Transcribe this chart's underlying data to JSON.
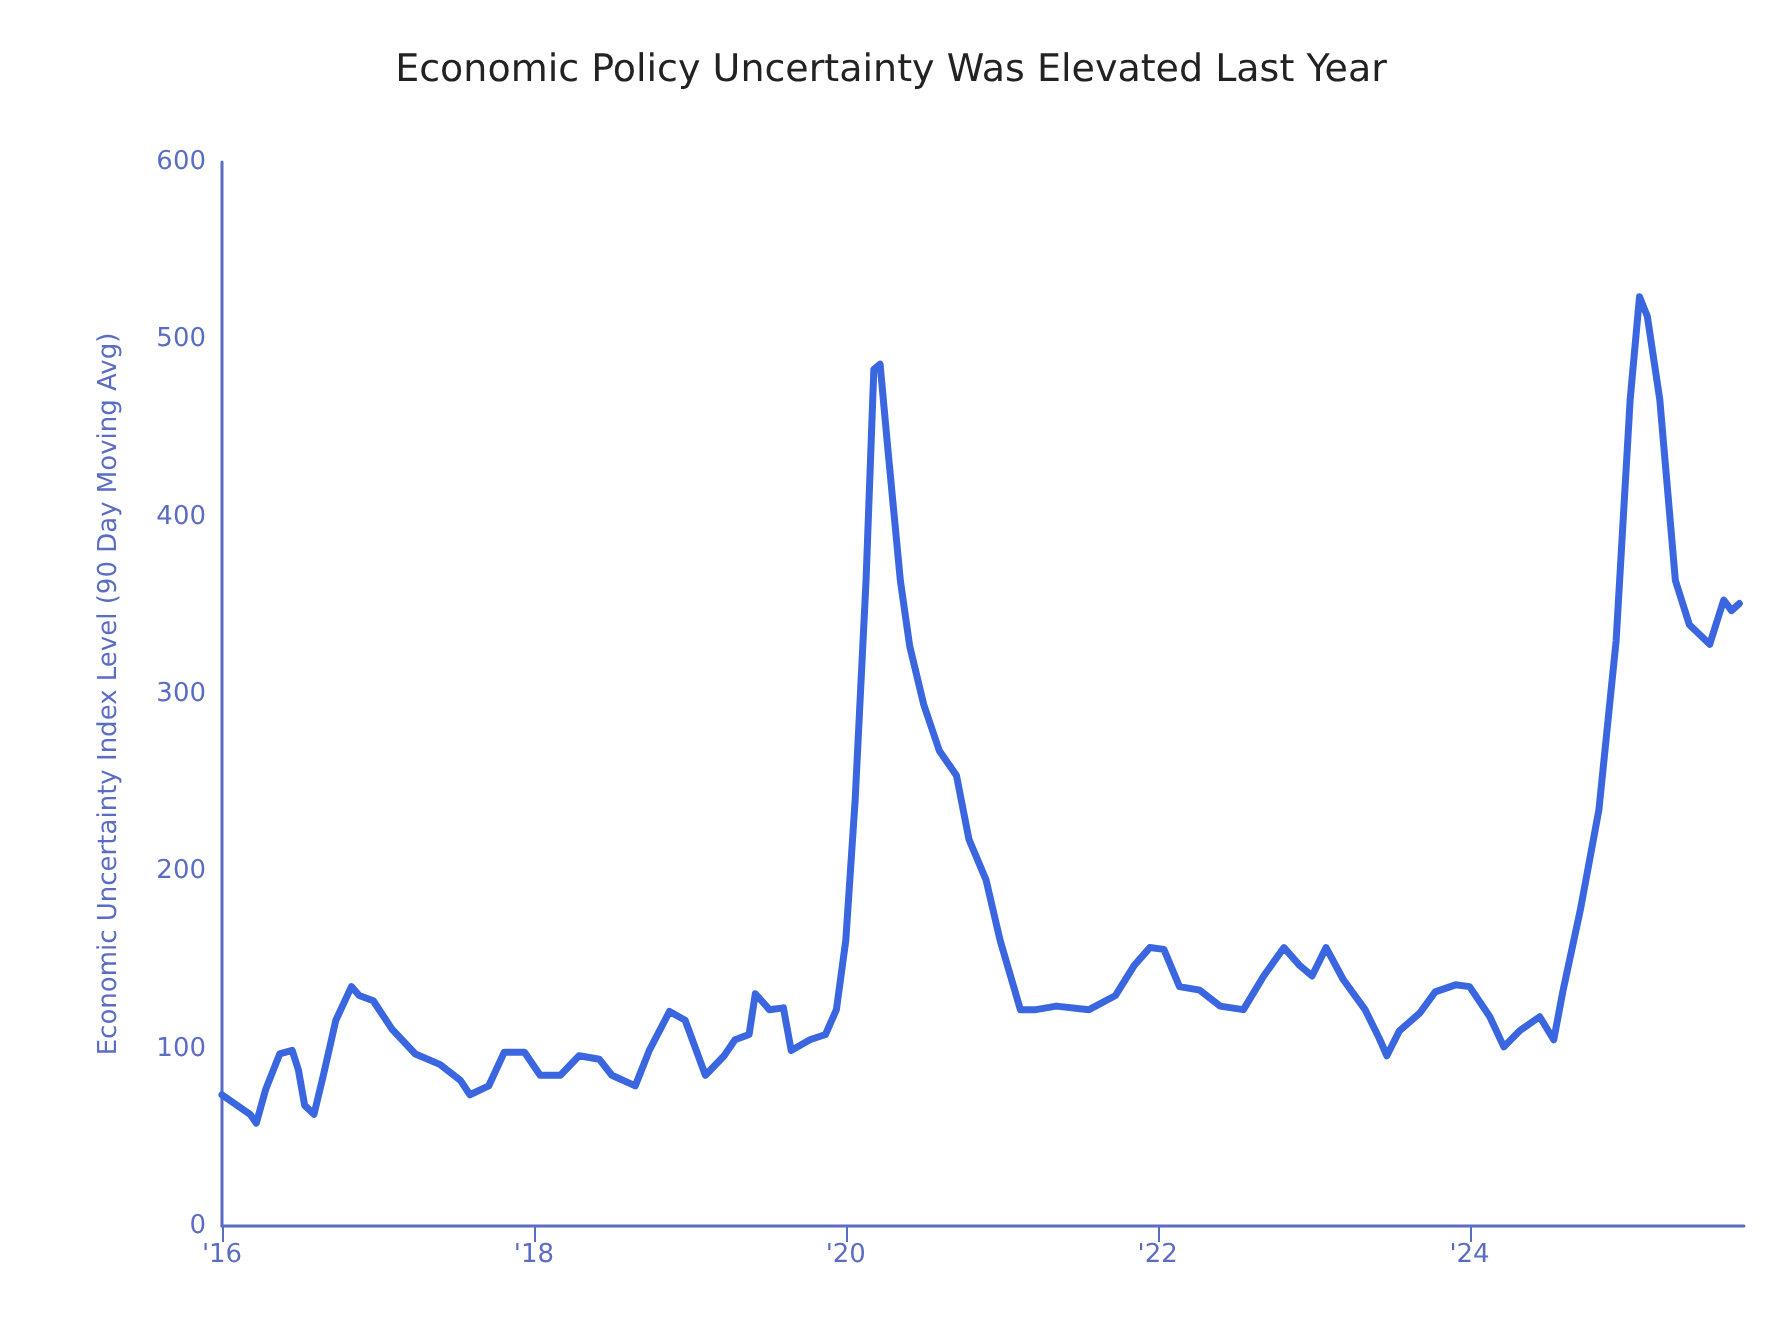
{
  "chart_data": {
    "type": "line",
    "title": "Economic Policy Uncertainty Was Elevated Last Year",
    "ylabel": "Economic Uncertainty Index Level (90 Day Moving Avg)",
    "x": [
      2016.0,
      2016.18,
      2016.22,
      2016.28,
      2016.37,
      2016.45,
      2016.49,
      2016.53,
      2016.59,
      2016.65,
      2016.73,
      2016.83,
      2016.88,
      2016.97,
      2017.09,
      2017.24,
      2017.4,
      2017.53,
      2017.59,
      2017.71,
      2017.81,
      2017.94,
      2018.04,
      2018.17,
      2018.29,
      2018.42,
      2018.5,
      2018.65,
      2018.74,
      2018.87,
      2018.97,
      2019.1,
      2019.22,
      2019.29,
      2019.38,
      2019.42,
      2019.51,
      2019.6,
      2019.65,
      2019.77,
      2019.87,
      2019.94,
      2020.0,
      2020.06,
      2020.13,
      2020.18,
      2020.22,
      2020.27,
      2020.35,
      2020.41,
      2020.5,
      2020.6,
      2020.71,
      2020.79,
      2020.9,
      2020.99,
      2021.12,
      2021.22,
      2021.35,
      2021.56,
      2021.73,
      2021.85,
      2021.95,
      2022.04,
      2022.14,
      2022.27,
      2022.4,
      2022.55,
      2022.68,
      2022.81,
      2022.91,
      2022.99,
      2023.08,
      2023.19,
      2023.33,
      2023.42,
      2023.47,
      2023.55,
      2023.68,
      2023.78,
      2023.91,
      2024.0,
      2024.13,
      2024.22,
      2024.32,
      2024.45,
      2024.54,
      2024.6,
      2024.71,
      2024.83,
      2024.94,
      2025.03,
      2025.09,
      2025.14,
      2025.22,
      2025.32,
      2025.41,
      2025.54,
      2025.63,
      2025.68,
      2025.73
    ],
    "series": [
      {
        "color": "#3a66e0",
        "values": [
          74,
          63,
          58,
          77,
          97,
          99,
          88,
          68,
          63,
          85,
          116,
          135,
          130,
          127,
          111,
          97,
          91,
          82,
          74,
          79,
          98,
          98,
          85,
          85,
          96,
          94,
          85,
          79,
          99,
          121,
          116,
          85,
          96,
          105,
          108,
          131,
          122,
          123,
          99,
          105,
          108,
          122,
          161,
          240,
          364,
          483,
          486,
          438,
          364,
          327,
          294,
          268,
          254,
          218,
          195,
          161,
          122,
          122,
          124,
          122,
          130,
          147,
          157,
          156,
          135,
          133,
          124,
          122,
          141,
          157,
          147,
          141,
          157,
          139,
          122,
          106,
          96,
          110,
          120,
          132,
          136,
          135,
          118,
          101,
          110,
          118,
          105,
          133,
          178,
          235,
          330,
          466,
          524,
          513,
          466,
          364,
          339,
          328,
          353,
          347,
          351
        ]
      }
    ],
    "xlim": [
      2016,
      2025.76
    ],
    "xticks": [
      {
        "value": 2016,
        "label": "'16"
      },
      {
        "value": 2018,
        "label": "'18"
      },
      {
        "value": 2020,
        "label": "'20"
      },
      {
        "value": 2022,
        "label": "'22"
      },
      {
        "value": 2024,
        "label": "'24"
      }
    ],
    "ylim": [
      0,
      600
    ],
    "yticks": [
      0,
      100,
      200,
      300,
      400,
      500,
      600
    ],
    "grid": false,
    "marker": "none",
    "line_style": "solid"
  }
}
